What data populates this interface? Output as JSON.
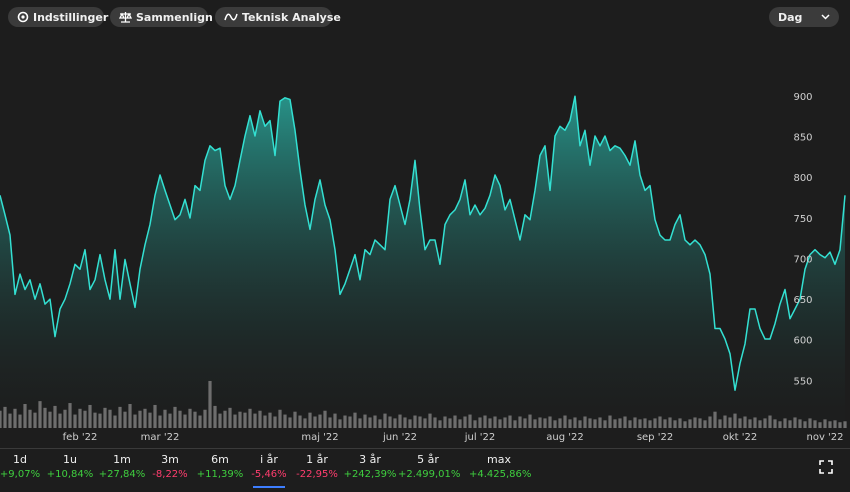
{
  "toolbar": {
    "buttons": [
      "Indstillinger",
      "Sammenlign",
      "Teknisk Analyse"
    ],
    "interval": "Dag"
  },
  "chart_data": {
    "type": "area",
    "color": "#33e0d2",
    "categories": [
      null,
      null,
      null,
      null,
      null,
      null,
      null,
      null,
      null,
      null,
      null,
      null,
      null,
      null,
      null,
      null,
      "feb '22",
      null,
      null,
      null,
      null,
      null,
      null,
      null,
      null,
      null,
      null,
      null,
      null,
      null,
      null,
      null,
      "mar '22",
      null,
      null,
      null,
      null,
      null,
      null,
      null,
      null,
      null,
      null,
      null,
      null,
      null,
      null,
      null,
      null,
      null,
      null,
      null,
      null,
      null,
      null,
      null,
      null,
      null,
      null,
      null,
      null,
      null,
      null,
      null,
      "maj '22",
      null,
      null,
      null,
      null,
      null,
      null,
      null,
      null,
      null,
      null,
      null,
      null,
      null,
      null,
      null,
      "jun '22",
      null,
      null,
      null,
      null,
      null,
      null,
      null,
      null,
      null,
      null,
      null,
      null,
      null,
      null,
      null,
      "jul '22",
      null,
      null,
      null,
      null,
      null,
      null,
      null,
      null,
      null,
      null,
      null,
      null,
      null,
      null,
      null,
      null,
      "aug '22",
      null,
      null,
      null,
      null,
      null,
      null,
      null,
      null,
      null,
      null,
      null,
      null,
      null,
      null,
      null,
      null,
      null,
      "sep '22",
      null,
      null,
      null,
      null,
      null,
      null,
      null,
      null,
      null,
      null,
      null,
      null,
      null,
      null,
      null,
      null,
      "okt '22",
      null,
      null,
      null,
      null,
      null,
      null,
      null,
      null,
      null,
      null,
      null,
      null,
      null,
      null,
      null,
      null,
      "nov '22",
      null,
      null,
      null,
      null
    ],
    "values": [
      779,
      755,
      730,
      657,
      682,
      663,
      675,
      651,
      670,
      645,
      651,
      605,
      639,
      651,
      670,
      694,
      688,
      712,
      663,
      675,
      706,
      675,
      651,
      712,
      651,
      700,
      670,
      641,
      688,
      718,
      743,
      779,
      804,
      785,
      767,
      749,
      755,
      774,
      751,
      791,
      785,
      822,
      840,
      834,
      837,
      791,
      774,
      791,
      822,
      852,
      877,
      852,
      883,
      864,
      871,
      828,
      895,
      899,
      897,
      859,
      810,
      767,
      737,
      774,
      798,
      767,
      749,
      712,
      657,
      670,
      688,
      706,
      675,
      712,
      706,
      724,
      718,
      712,
      774,
      791,
      767,
      743,
      774,
      822,
      761,
      712,
      724,
      724,
      694,
      743,
      755,
      761,
      774,
      798,
      755,
      767,
      755,
      763,
      779,
      804,
      791,
      761,
      774,
      749,
      724,
      755,
      749,
      785,
      828,
      840,
      785,
      852,
      864,
      859,
      871,
      901,
      840,
      859,
      816,
      852,
      840,
      852,
      834,
      840,
      837,
      828,
      816,
      846,
      804,
      785,
      791,
      749,
      730,
      724,
      724,
      743,
      755,
      724,
      718,
      724,
      718,
      706,
      682,
      615,
      615,
      602,
      584,
      539,
      572,
      596,
      639,
      639,
      615,
      602,
      602,
      621,
      645,
      663,
      627,
      639,
      651,
      688,
      706,
      712,
      706,
      702,
      709,
      694,
      712,
      779
    ],
    "ylim": [
      490,
      985
    ],
    "yticks": [
      550,
      600,
      650,
      700,
      750,
      800,
      850,
      900
    ],
    "volume": {
      "color": "#6e6e6e",
      "ylim": [
        0,
        50
      ],
      "values": [
        18,
        22,
        15,
        20,
        14,
        25,
        19,
        16,
        28,
        21,
        17,
        23,
        15,
        19,
        26,
        14,
        20,
        18,
        24,
        16,
        15,
        21,
        19,
        13,
        22,
        17,
        25,
        14,
        18,
        20,
        16,
        24,
        13,
        19,
        15,
        22,
        18,
        14,
        20,
        17,
        13,
        19,
        49,
        23,
        15,
        18,
        21,
        14,
        17,
        16,
        20,
        15,
        18,
        13,
        16,
        12,
        19,
        14,
        11,
        17,
        13,
        10,
        16,
        12,
        14,
        18,
        11,
        15,
        9,
        13,
        12,
        16,
        10,
        14,
        11,
        13,
        9,
        15,
        12,
        10,
        14,
        11,
        9,
        13,
        12,
        10,
        15,
        11,
        8,
        12,
        10,
        13,
        9,
        12,
        14,
        8,
        11,
        13,
        10,
        12,
        9,
        11,
        13,
        8,
        12,
        10,
        14,
        9,
        11,
        10,
        12,
        8,
        10,
        13,
        9,
        11,
        8,
        12,
        10,
        9,
        11,
        8,
        13,
        9,
        10,
        12,
        8,
        11,
        9,
        10,
        8,
        10,
        12,
        9,
        11,
        8,
        10,
        7,
        9,
        11,
        10,
        8,
        12,
        17,
        9,
        13,
        11,
        15,
        10,
        12,
        9,
        11,
        8,
        10,
        13,
        9,
        7,
        10,
        8,
        11,
        9,
        7,
        10,
        8,
        6,
        9,
        7,
        8,
        6,
        7
      ]
    }
  },
  "periods": {
    "selected_index": 5,
    "items": [
      {
        "label": "1d",
        "change": "+9,07%",
        "color": "#3fcf3f"
      },
      {
        "label": "1u",
        "change": "+10,84%",
        "color": "#3fcf3f"
      },
      {
        "label": "1m",
        "change": "+27,84%",
        "color": "#3fcf3f"
      },
      {
        "label": "3m",
        "change": "-8,22%",
        "color": "#ff3d6e"
      },
      {
        "label": "6m",
        "change": "+11,39%",
        "color": "#3fcf3f"
      },
      {
        "label": "i år",
        "change": "-5,46%",
        "color": "#ff3d6e"
      },
      {
        "label": "1 år",
        "change": "-22,95%",
        "color": "#ff3d6e"
      },
      {
        "label": "3 år",
        "change": "+242,39%",
        "color": "#3fcf3f"
      },
      {
        "label": "5 år",
        "change": "+2.499,01%",
        "color": "#3fcf3f"
      },
      {
        "label": "max",
        "change": "+4.425,86%",
        "color": "#3fcf3f"
      }
    ]
  }
}
